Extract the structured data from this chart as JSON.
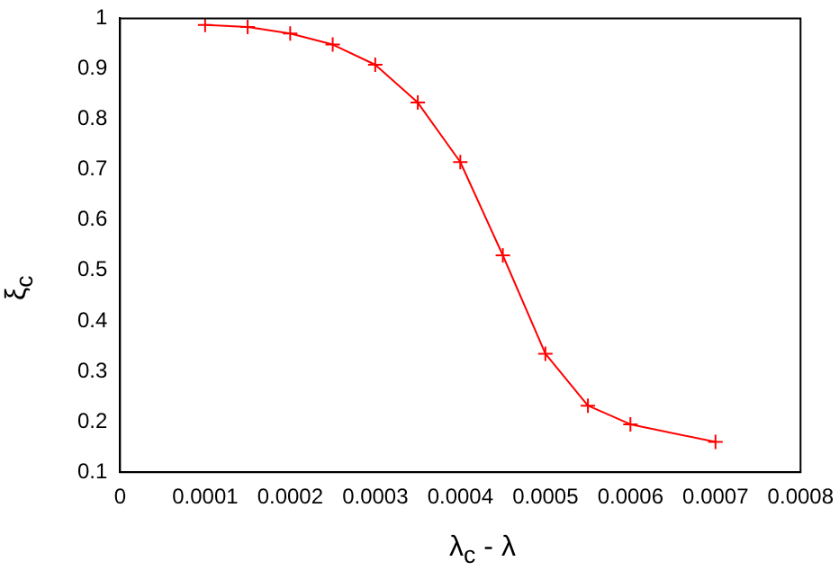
{
  "chart_data": {
    "type": "line",
    "xlabel": "λ$_{c}$ - λ",
    "ylabel": "ξ$_{c}$",
    "x": [
      0.0001,
      0.00015,
      0.0002,
      0.00025,
      0.0003,
      0.00035,
      0.0004,
      0.00045,
      0.0005,
      0.00055,
      0.0006,
      0.0007
    ],
    "series": [
      {
        "color": "#ff0000",
        "values": [
          0.987,
          0.983,
          0.97,
          0.948,
          0.908,
          0.833,
          0.715,
          0.53,
          0.335,
          0.232,
          0.195,
          0.16
        ]
      }
    ],
    "xlim": [
      0,
      0.0008
    ],
    "xticks": [
      0,
      0.0001,
      0.0002,
      0.0003,
      0.0004,
      0.0005,
      0.0006,
      0.0007,
      0.0008
    ],
    "ylim": [
      0.1,
      1
    ],
    "yticks": [
      0.1,
      0.2,
      0.3,
      0.4,
      0.5,
      0.6,
      0.7,
      0.8,
      0.9,
      1
    ],
    "marker": "cross",
    "line_style": "solid",
    "grid": false,
    "legend": false
  }
}
